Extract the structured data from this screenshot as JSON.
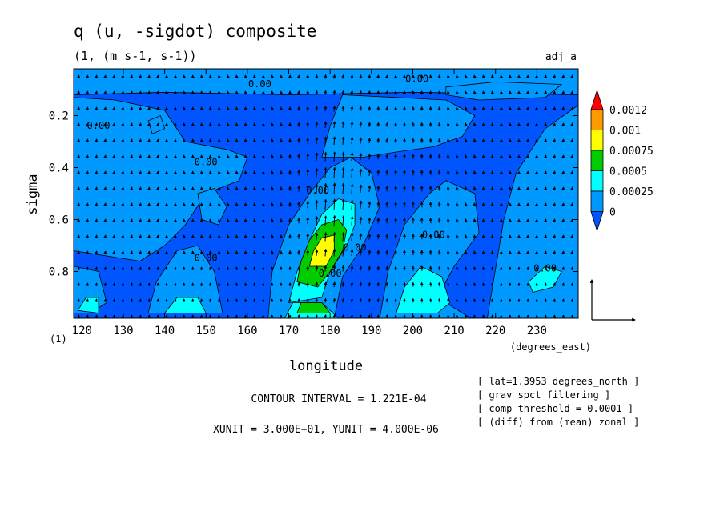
{
  "chart_data": {
    "type": "contour",
    "title": "q (u, -sigdot) composite",
    "subtitle": "(1, (m s-1, s-1))",
    "run_label": "adj_a",
    "xlabel": "longitude",
    "ylabel": "sigma",
    "x_unit_label": "(degrees_east)",
    "lower_left_label": "(1)",
    "xlim": [
      118,
      240
    ],
    "ylim": [
      0.02,
      0.98
    ],
    "y_inverted": true,
    "x_ticks": [
      "120",
      "130",
      "140",
      "150",
      "160",
      "170",
      "180",
      "190",
      "200",
      "210",
      "220",
      "230"
    ],
    "y_ticks": [
      "0.2",
      "0.4",
      "0.6",
      "0.8"
    ],
    "contour_label_text": "0.00",
    "colorbar": {
      "labels": [
        "0.0012",
        "0.001",
        "0.00075",
        "0.0005",
        "0.00025",
        "0"
      ],
      "colors": [
        "#ff0000",
        "#ff9900",
        "#ffff00",
        "#00cc00",
        "#00ffff",
        "#0099ff",
        "#0055ff"
      ]
    },
    "fill_colors": {
      "base": "#0055ff",
      "level1": "#0099ff",
      "level2": "#00ffff",
      "level3": "#00cc00",
      "level4": "#ffff00"
    },
    "annotations": {
      "contour_interval": "CONTOUR INTERVAL = 1.221E-04",
      "units": "XUNIT = 3.000E+01, YUNIT = 4.000E-06",
      "info_lines": [
        "[ lat=1.3953 degrees_north ]",
        "[ grav spct filtering ]",
        "[ comp threshold = 0.0001 ]",
        "[ (diff) from (mean) zonal ]"
      ]
    },
    "regions": [
      {
        "level": "level1",
        "points": [
          [
            118,
            0.02
          ],
          [
            240,
            0.02
          ],
          [
            240,
            0.12
          ],
          [
            200,
            0.11
          ],
          [
            170,
            0.12
          ],
          [
            140,
            0.11
          ],
          [
            118,
            0.12
          ]
        ]
      },
      {
        "level": "level1",
        "points": [
          [
            118,
            0.13
          ],
          [
            128,
            0.14
          ],
          [
            140,
            0.18
          ],
          [
            145,
            0.3
          ],
          [
            155,
            0.33
          ],
          [
            160,
            0.36
          ],
          [
            158,
            0.45
          ],
          [
            150,
            0.5
          ],
          [
            145,
            0.62
          ],
          [
            140,
            0.7
          ],
          [
            134,
            0.76
          ],
          [
            126,
            0.74
          ],
          [
            118,
            0.72
          ]
        ]
      },
      {
        "level": "level1",
        "points": [
          [
            118,
            0.78
          ],
          [
            124,
            0.8
          ],
          [
            126,
            0.92
          ],
          [
            122,
            0.96
          ],
          [
            118,
            0.96
          ]
        ]
      },
      {
        "level": "level1",
        "points": [
          [
            136,
            0.96
          ],
          [
            138,
            0.84
          ],
          [
            143,
            0.72
          ],
          [
            148,
            0.7
          ],
          [
            152,
            0.8
          ],
          [
            154,
            0.96
          ]
        ]
      },
      {
        "level": "level1",
        "points": [
          [
            148,
            0.5
          ],
          [
            152,
            0.48
          ],
          [
            155,
            0.55
          ],
          [
            153,
            0.62
          ],
          [
            149,
            0.6
          ]
        ]
      },
      {
        "level": "level1",
        "points": [
          [
            165,
            0.98
          ],
          [
            166,
            0.8
          ],
          [
            170,
            0.62
          ],
          [
            175,
            0.5
          ],
          [
            180,
            0.4
          ],
          [
            185,
            0.36
          ],
          [
            190,
            0.42
          ],
          [
            192,
            0.55
          ],
          [
            188,
            0.7
          ],
          [
            183,
            0.82
          ],
          [
            181,
            0.98
          ]
        ]
      },
      {
        "level": "level1",
        "points": [
          [
            178,
            0.36
          ],
          [
            180,
            0.24
          ],
          [
            183,
            0.12
          ],
          [
            196,
            0.13
          ],
          [
            208,
            0.14
          ],
          [
            215,
            0.2
          ],
          [
            212,
            0.28
          ],
          [
            205,
            0.32
          ],
          [
            196,
            0.34
          ],
          [
            188,
            0.36
          ]
        ]
      },
      {
        "level": "level1",
        "points": [
          [
            192,
            0.98
          ],
          [
            194,
            0.8
          ],
          [
            198,
            0.62
          ],
          [
            204,
            0.5
          ],
          [
            208,
            0.45
          ],
          [
            215,
            0.5
          ],
          [
            216,
            0.65
          ],
          [
            210,
            0.78
          ],
          [
            206,
            0.9
          ],
          [
            214,
            0.98
          ]
        ]
      },
      {
        "level": "level1",
        "points": [
          [
            218,
            0.98
          ],
          [
            222,
            0.6
          ],
          [
            225,
            0.42
          ],
          [
            232,
            0.25
          ],
          [
            240,
            0.16
          ],
          [
            240,
            0.98
          ]
        ]
      },
      {
        "level": "level1",
        "points": [
          [
            208,
            0.09
          ],
          [
            220,
            0.07
          ],
          [
            236,
            0.08
          ],
          [
            232,
            0.13
          ],
          [
            216,
            0.14
          ],
          [
            208,
            0.12
          ]
        ]
      },
      {
        "level": "level1",
        "points": [
          [
            136,
            0.22
          ],
          [
            139,
            0.2
          ],
          [
            140,
            0.25
          ],
          [
            137,
            0.27
          ]
        ]
      },
      {
        "level": "level2",
        "points": [
          [
            170,
            0.92
          ],
          [
            172,
            0.8
          ],
          [
            175,
            0.68
          ],
          [
            178,
            0.58
          ],
          [
            182,
            0.52
          ],
          [
            186,
            0.54
          ],
          [
            186,
            0.62
          ],
          [
            184,
            0.7
          ],
          [
            180,
            0.8
          ],
          [
            178,
            0.9
          ]
        ]
      },
      {
        "level": "level2",
        "points": [
          [
            169,
            0.98
          ],
          [
            171,
            0.92
          ],
          [
            178,
            0.92
          ],
          [
            182,
            0.98
          ]
        ]
      },
      {
        "level": "level2",
        "points": [
          [
            196,
            0.96
          ],
          [
            198,
            0.86
          ],
          [
            202,
            0.78
          ],
          [
            207,
            0.82
          ],
          [
            209,
            0.92
          ],
          [
            206,
            0.96
          ]
        ]
      },
      {
        "level": "level2",
        "points": [
          [
            140,
            0.96
          ],
          [
            143,
            0.9
          ],
          [
            148,
            0.9
          ],
          [
            150,
            0.96
          ]
        ]
      },
      {
        "level": "level2",
        "points": [
          [
            119,
            0.95
          ],
          [
            121,
            0.9
          ],
          [
            124,
            0.9
          ],
          [
            124,
            0.96
          ]
        ]
      },
      {
        "level": "level2",
        "points": [
          [
            228,
            0.84
          ],
          [
            232,
            0.78
          ],
          [
            236,
            0.8
          ],
          [
            234,
            0.86
          ],
          [
            229,
            0.88
          ]
        ]
      },
      {
        "level": "level3",
        "points": [
          [
            172,
            0.84
          ],
          [
            173,
            0.76
          ],
          [
            175,
            0.68
          ],
          [
            178,
            0.62
          ],
          [
            182,
            0.6
          ],
          [
            184,
            0.64
          ],
          [
            183,
            0.72
          ],
          [
            180,
            0.8
          ],
          [
            177,
            0.86
          ]
        ]
      },
      {
        "level": "level3",
        "points": [
          [
            172,
            0.96
          ],
          [
            173,
            0.92
          ],
          [
            178,
            0.92
          ],
          [
            180,
            0.96
          ]
        ]
      },
      {
        "level": "level4",
        "points": [
          [
            175,
            0.78
          ],
          [
            176,
            0.72
          ],
          [
            178,
            0.67
          ],
          [
            181,
            0.66
          ],
          [
            181,
            0.72
          ],
          [
            179,
            0.78
          ]
        ]
      }
    ],
    "contour_labels": [
      {
        "x": 163,
        "y": 0.09
      },
      {
        "x": 201,
        "y": 0.07
      },
      {
        "x": 124,
        "y": 0.25
      },
      {
        "x": 150,
        "y": 0.39
      },
      {
        "x": 150,
        "y": 0.76
      },
      {
        "x": 177,
        "y": 0.5
      },
      {
        "x": 205,
        "y": 0.67
      },
      {
        "x": 232,
        "y": 0.8
      },
      {
        "x": 186,
        "y": 0.72
      },
      {
        "x": 180,
        "y": 0.82
      }
    ]
  }
}
